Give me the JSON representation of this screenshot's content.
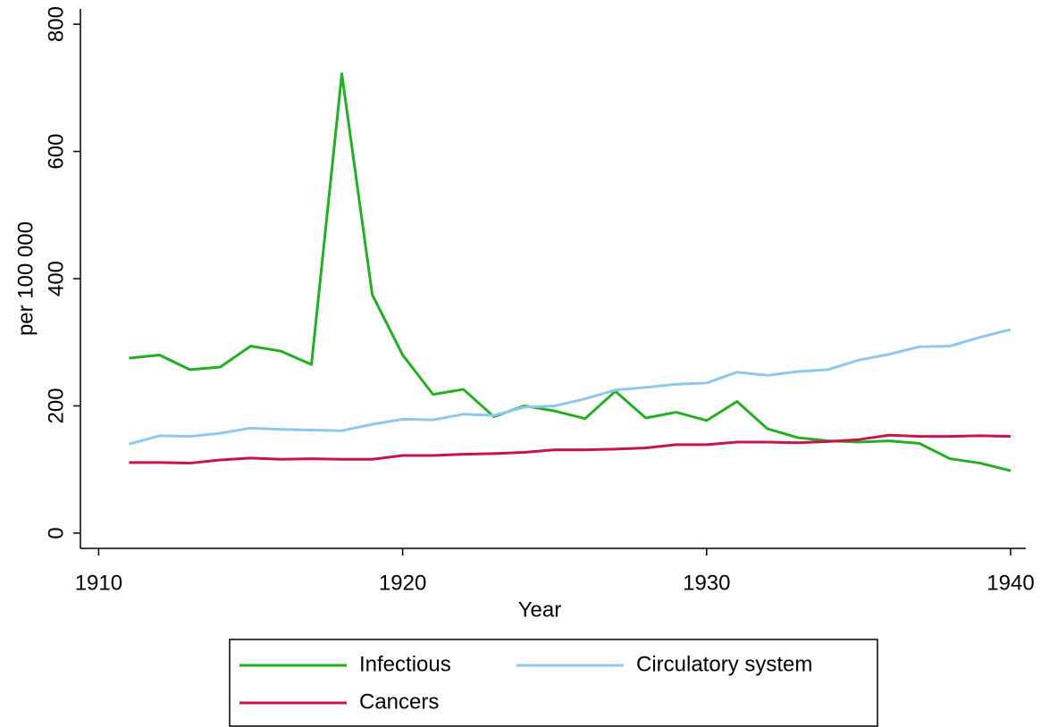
{
  "chart_data": {
    "type": "line",
    "x_label": "Year",
    "y_label": "per 100 000",
    "x": [
      1911,
      1912,
      1913,
      1914,
      1915,
      1916,
      1917,
      1918,
      1919,
      1920,
      1921,
      1922,
      1923,
      1924,
      1925,
      1926,
      1927,
      1928,
      1929,
      1930,
      1931,
      1932,
      1933,
      1934,
      1935,
      1936,
      1937,
      1938,
      1939,
      1940
    ],
    "series": [
      {
        "name": "Infectious",
        "color": "#22b022",
        "values": [
          275,
          280,
          257,
          261,
          294,
          286,
          265,
          722,
          375,
          280,
          218,
          226,
          183,
          200,
          192,
          180,
          223,
          181,
          190,
          177,
          207,
          164,
          150,
          145,
          143,
          145,
          141,
          117,
          110,
          98
        ]
      },
      {
        "name": "Circulatory system",
        "color": "#8ec8ec",
        "values": [
          140,
          153,
          152,
          157,
          165,
          163,
          162,
          161,
          171,
          179,
          178,
          187,
          185,
          198,
          200,
          211,
          225,
          229,
          234,
          236,
          253,
          248,
          254,
          257,
          272,
          281,
          293,
          294,
          308,
          320
        ]
      },
      {
        "name": "Cancers",
        "color": "#c8144a",
        "values": [
          111,
          111,
          110,
          115,
          118,
          116,
          117,
          116,
          116,
          122,
          122,
          124,
          125,
          127,
          131,
          131,
          132,
          134,
          139,
          139,
          143,
          143,
          142,
          144,
          147,
          154,
          152,
          152,
          153,
          152
        ]
      }
    ],
    "xlim": [
      1909.4,
      1940.5
    ],
    "ylim": [
      -24,
      824
    ],
    "xticks": [
      1910,
      1920,
      1930,
      1940
    ],
    "yticks": [
      0,
      200,
      400,
      600,
      800
    ],
    "grid": false
  }
}
